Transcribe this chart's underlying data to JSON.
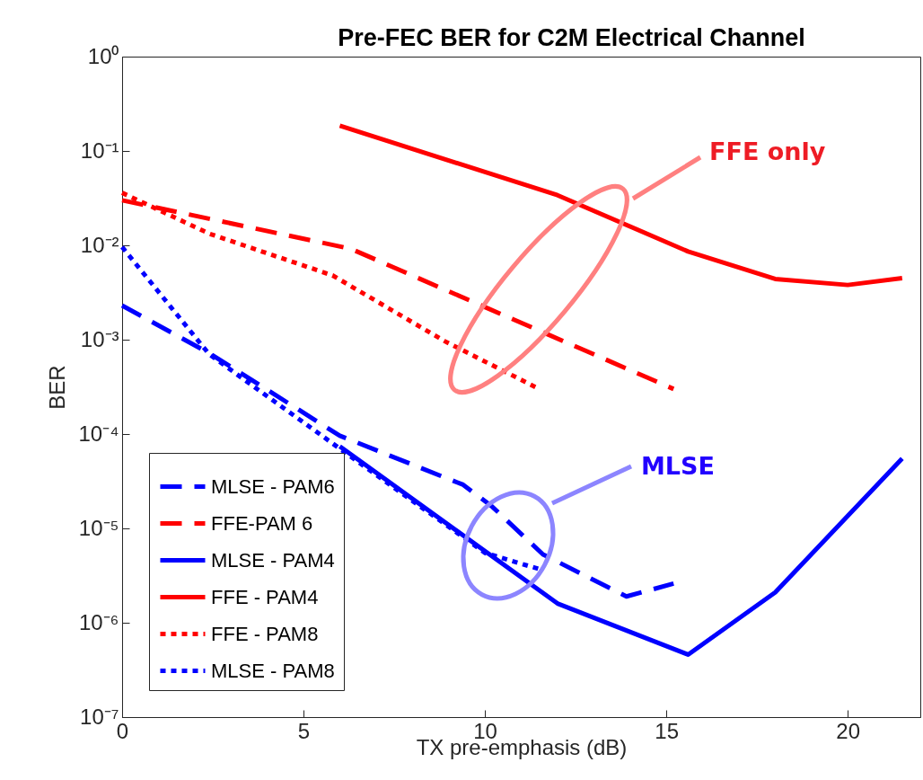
{
  "chart_data": {
    "type": "line",
    "title": "Pre-FEC BER for C2M Electrical Channel",
    "xlabel": "TX pre-emphasis (dB)",
    "ylabel": "BER",
    "log": "y",
    "grid": false,
    "legend": "bottom left",
    "marker": "none",
    "xlim": [
      0,
      22
    ],
    "xticks": [
      0,
      5,
      10,
      15,
      20
    ],
    "ylim": [
      1e-07,
      1
    ],
    "yticks": [
      {
        "value": 1e-07,
        "label": "10⁻⁷"
      },
      {
        "value": 1e-06,
        "label": "10⁻⁶"
      },
      {
        "value": 1e-05,
        "label": "10⁻⁵"
      },
      {
        "value": 0.0001,
        "label": "10⁻⁴"
      },
      {
        "value": 0.001,
        "label": "10⁻³"
      },
      {
        "value": 0.01,
        "label": "10⁻²"
      },
      {
        "value": 0.1,
        "label": "10⁻¹"
      },
      {
        "value": 1,
        "label": "10⁰"
      }
    ],
    "series": [
      {
        "name": "MLSE - PAM6",
        "color": "#0000ff",
        "line_style": "dashed",
        "x": [
          0,
          2.4,
          6,
          9.4,
          10.2,
          11.6,
          13.9,
          15.2
        ],
        "values": [
          0.0023,
          0.00072,
          9.6e-05,
          2.9e-05,
          1.7e-05,
          5.3e-06,
          1.9e-06,
          2.6e-06
        ]
      },
      {
        "name": "FFE-PAM 6",
        "color": "#ff0000",
        "line_style": "dashed",
        "x": [
          0,
          6.3,
          15.2
        ],
        "values": [
          0.03,
          0.0092,
          0.0003
        ]
      },
      {
        "name": "MLSE - PAM4",
        "color": "#0000ff",
        "line_style": "solid",
        "x": [
          6,
          12,
          15.6,
          18,
          21.5
        ],
        "values": [
          7.4e-05,
          1.6e-06,
          4.6e-07,
          2.1e-06,
          5.5e-05
        ]
      },
      {
        "name": "FFE - PAM4",
        "color": "#ff0000",
        "line_style": "solid",
        "x": [
          6,
          12,
          15.6,
          18,
          20,
          21.5
        ],
        "values": [
          0.185,
          0.034,
          0.0086,
          0.0044,
          0.0038,
          0.0045
        ]
      },
      {
        "name": "FFE - PAM8",
        "color": "#ff0000",
        "line_style": "dotted",
        "x": [
          0,
          2.4,
          5.8,
          8.9,
          11.5
        ],
        "values": [
          0.036,
          0.0133,
          0.0048,
          0.00096,
          0.0003
        ]
      },
      {
        "name": "MLSE - PAM8",
        "color": "#0000ff",
        "line_style": "dotted",
        "x": [
          0,
          2.4,
          6,
          10,
          11.5
        ],
        "values": [
          0.0096,
          0.0007,
          7e-05,
          5.5e-06,
          3.7e-06
        ]
      }
    ],
    "annotations": [
      "FFE only",
      "MLSE"
    ]
  }
}
